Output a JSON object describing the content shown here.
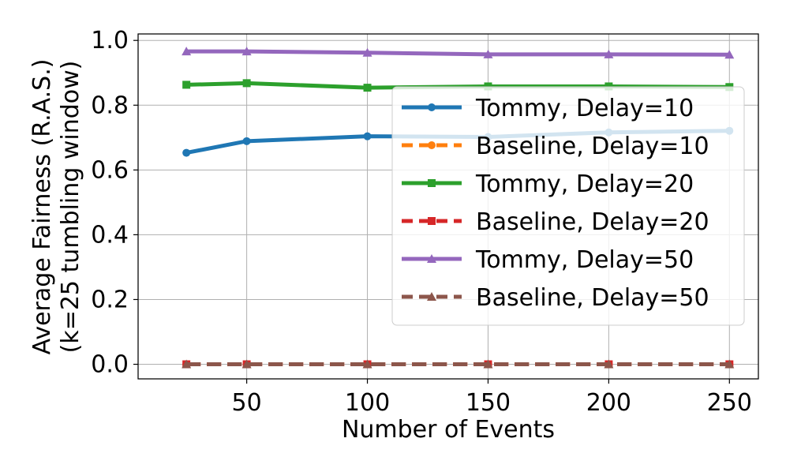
{
  "chart_data": {
    "type": "line",
    "title": "",
    "xlabel": "Number of Events",
    "ylabel_lines": [
      "Average Fairness (R.A.S.)",
      "(k=25 tumbling window)"
    ],
    "xlim": [
      5,
      262
    ],
    "ylim": [
      -0.045,
      1.02
    ],
    "xticks": [
      50,
      100,
      150,
      200,
      250
    ],
    "yticks": [
      0.0,
      0.2,
      0.4,
      0.6,
      0.8,
      1.0
    ],
    "xtick_labels": [
      "50",
      "100",
      "150",
      "200",
      "250"
    ],
    "ytick_labels": [
      "0.0",
      "0.2",
      "0.4",
      "0.6",
      "0.8",
      "1.0"
    ],
    "grid": true,
    "legend_position": "right",
    "x": [
      25,
      50,
      100,
      150,
      200,
      250
    ],
    "series": [
      {
        "name": "Tommy, Delay=10",
        "values": [
          0.653,
          0.689,
          0.704,
          0.702,
          0.716,
          0.721
        ],
        "color": "#1f77b4",
        "dash": "solid",
        "marker": "circle"
      },
      {
        "name": "Baseline, Delay=10",
        "values": [
          0.0,
          0.0,
          0.0,
          0.0,
          0.0,
          0.0
        ],
        "color": "#ff7f0e",
        "dash": "dashed",
        "marker": "circle"
      },
      {
        "name": "Tommy, Delay=20",
        "values": [
          0.863,
          0.868,
          0.854,
          0.858,
          0.858,
          0.856
        ],
        "color": "#2ca02c",
        "dash": "solid",
        "marker": "square"
      },
      {
        "name": "Baseline, Delay=20",
        "values": [
          0.0,
          0.0,
          0.0,
          0.0,
          0.0,
          0.0
        ],
        "color": "#d62728",
        "dash": "dashed",
        "marker": "square"
      },
      {
        "name": "Tommy, Delay=50",
        "values": [
          0.966,
          0.966,
          0.962,
          0.957,
          0.957,
          0.956
        ],
        "color": "#9467bd",
        "dash": "solid",
        "marker": "triangle"
      },
      {
        "name": "Baseline, Delay=50",
        "values": [
          0.0,
          0.0,
          0.0,
          0.0,
          0.0,
          0.0
        ],
        "color": "#8c564b",
        "dash": "dashed",
        "marker": "triangle"
      }
    ]
  }
}
